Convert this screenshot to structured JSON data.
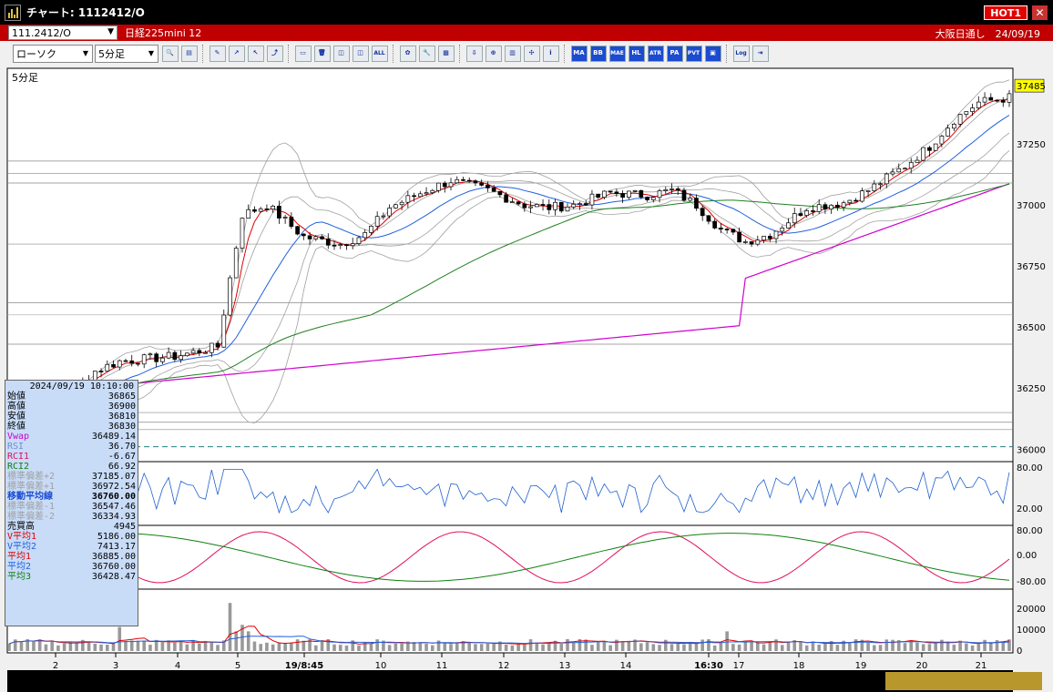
{
  "window": {
    "title": "チャート: 1112412/O",
    "hot_badge": "HOT1",
    "close_label": "✕"
  },
  "symbol_bar": {
    "code": "111.2412/O",
    "name": "日経225mini 12",
    "market_info": "大阪日通し　24/09/19"
  },
  "toolbar": {
    "chart_type": "ローソク",
    "interval": "5分足",
    "buttons": [
      {
        "name": "zoom-icon",
        "label": "🔍"
      },
      {
        "name": "bars-icon",
        "label": "▤"
      },
      {
        "name": "pen-icon",
        "label": "✎"
      },
      {
        "name": "draw-icon",
        "label": "↗"
      },
      {
        "name": "cursor-icon",
        "label": "↖"
      },
      {
        "name": "curve-icon",
        "label": "⤴"
      },
      {
        "name": "note-icon",
        "label": "▭"
      },
      {
        "name": "trash-icon",
        "label": "🗑"
      },
      {
        "name": "candle-icon",
        "label": "◫"
      },
      {
        "name": "candle2-icon",
        "label": "◫"
      },
      {
        "name": "all-button",
        "label": "ALL"
      },
      {
        "name": "gear-icon",
        "label": "✿"
      },
      {
        "name": "wrench-icon",
        "label": "🔧"
      },
      {
        "name": "palette-icon",
        "label": "▩"
      },
      {
        "name": "download-icon",
        "label": "⇩"
      },
      {
        "name": "magnify-icon",
        "label": "⊕"
      },
      {
        "name": "table-icon",
        "label": "▥"
      },
      {
        "name": "cross-icon",
        "label": "✣"
      },
      {
        "name": "info-icon",
        "label": "i"
      },
      {
        "name": "ma-button",
        "label": "MA"
      },
      {
        "name": "bb-button",
        "label": "BB"
      },
      {
        "name": "mae-button",
        "label": "MAE"
      },
      {
        "name": "hl-button",
        "label": "HL"
      },
      {
        "name": "atr-button",
        "label": "ATR"
      },
      {
        "name": "para-button",
        "label": "PA"
      },
      {
        "name": "pvt-button",
        "label": "PVT"
      },
      {
        "name": "frame-icon",
        "label": "▣"
      },
      {
        "name": "log-button",
        "label": "Log"
      },
      {
        "name": "export-icon",
        "label": "⇥"
      }
    ]
  },
  "chart": {
    "interval_label": "5分足",
    "price_scale": [
      "37250",
      "37000",
      "36750",
      "36500",
      "36250",
      "36000"
    ],
    "last_price": "37485",
    "rsi_scale": [
      "80.00",
      "20.00"
    ],
    "rci_scale": [
      "80.00",
      "0.00",
      "-80.00"
    ],
    "volume_scale": [
      "20000",
      "10000",
      "0"
    ],
    "time_labels": [
      "2",
      "3",
      "4",
      "5",
      "19/8:45",
      "10",
      "11",
      "12",
      "13",
      "14",
      "16:30",
      "17",
      "18",
      "19",
      "20",
      "21"
    ],
    "colors": {
      "background": "#ffffff",
      "up": "#ffffff",
      "down": "#000000",
      "ma1": "#e00000",
      "ma2": "#2060e0",
      "ma3": "#208020",
      "vwap": "#d000d0",
      "band": "#a0a0a0",
      "rsi": "#2060d0",
      "rci1": "#e01060",
      "rci2": "#108010",
      "dashed": "#208080"
    }
  },
  "info_panel": {
    "datetime": "2024/09/19  10:10:00",
    "rows": [
      {
        "label": "始値",
        "value": "36865",
        "color": "#000"
      },
      {
        "label": "高値",
        "value": "36900",
        "color": "#000"
      },
      {
        "label": "安値",
        "value": "36810",
        "color": "#000"
      },
      {
        "label": "終値",
        "value": "36830",
        "color": "#000"
      },
      {
        "label": "Vwap",
        "value": "36489.14",
        "color": "#d000d0"
      },
      {
        "label": "RSI",
        "value": "36.70",
        "color": "#7090d0"
      },
      {
        "label": "RCI1",
        "value": "-6.67",
        "color": "#e01060"
      },
      {
        "label": "RCI2",
        "value": "66.92",
        "color": "#108010"
      },
      {
        "label": "標準偏差+2",
        "value": "37185.07",
        "color": "#a0a0a0"
      },
      {
        "label": "標準偏差+1",
        "value": "36972.54",
        "color": "#a0a0a0"
      },
      {
        "label": "移動平均線",
        "value": "36760.00",
        "color": "#1a4bd0",
        "bold": true
      },
      {
        "label": "標準偏差-1",
        "value": "36547.46",
        "color": "#a0a0a0"
      },
      {
        "label": "標準偏差-2",
        "value": "36334.93",
        "color": "#a0a0a0"
      },
      {
        "label": "売買高",
        "value": "4945",
        "color": "#000"
      },
      {
        "label": "V平均1",
        "value": "5186.00",
        "color": "#e00000"
      },
      {
        "label": "V平均2",
        "value": "7413.17",
        "color": "#2060e0"
      },
      {
        "label": "平均1",
        "value": "36885.00",
        "color": "#e00000"
      },
      {
        "label": "平均2",
        "value": "36760.00",
        "color": "#2060e0"
      },
      {
        "label": "平均3",
        "value": "36428.47",
        "color": "#108010"
      }
    ]
  }
}
